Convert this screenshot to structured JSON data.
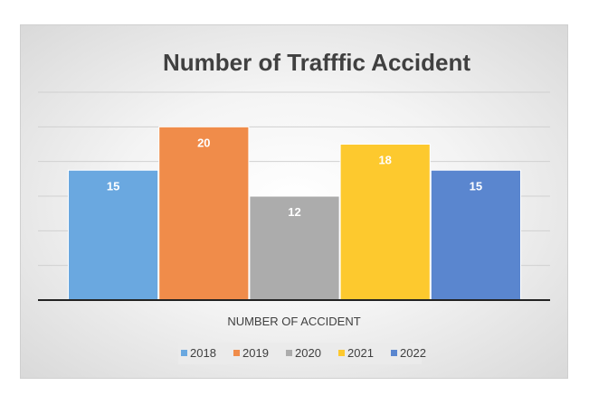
{
  "chart_data": {
    "type": "bar",
    "title": "Number of Trafffic Accident",
    "xlabel": "NUMBER OF ACCIDENT",
    "ylabel": "",
    "ylim": [
      0,
      24
    ],
    "grid": true,
    "legend_position": "bottom",
    "series": [
      {
        "name": "2018",
        "values": [
          15
        ],
        "color": "#6aa8e0"
      },
      {
        "name": "2019",
        "values": [
          20
        ],
        "color": "#f08c4a"
      },
      {
        "name": "2020",
        "values": [
          12
        ],
        "color": "#acacac"
      },
      {
        "name": "2021",
        "values": [
          18
        ],
        "color": "#fdc92e"
      },
      {
        "name": "2022",
        "values": [
          15
        ],
        "color": "#5a86cf"
      }
    ]
  }
}
